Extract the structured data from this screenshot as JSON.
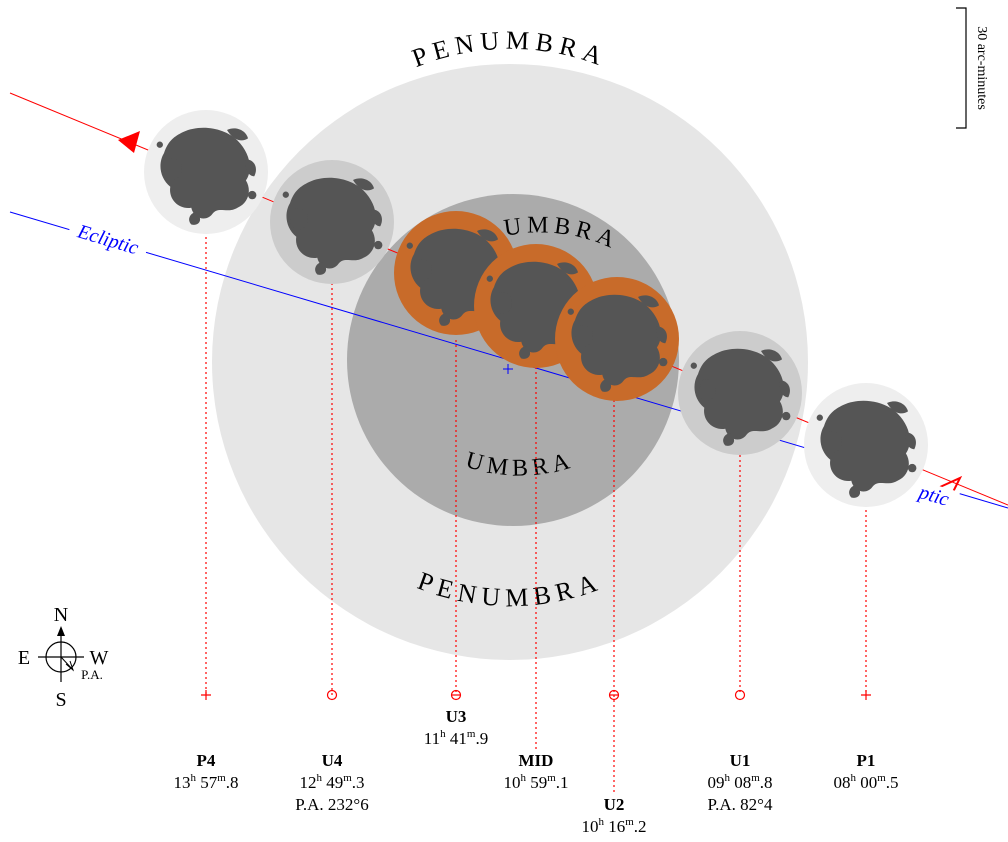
{
  "colors": {
    "penumbra": "#e6e6e6",
    "umbra": "#ababab",
    "totality_moon": "#c86b2a",
    "moon_light": "#eeeeee",
    "moon_shadowed": "#cccccc",
    "mare": "#555555",
    "moon_path": "#ff0000",
    "ecliptic": "#0000ff",
    "contact_line": "#ff0000"
  },
  "labels": {
    "penumbra_top": "PENUMBRA",
    "penumbra_bottom": "PENUMBRA",
    "umbra_top": "UMBRA",
    "umbra_bottom": "UMBRA",
    "ecliptic_left": "Ecliptic",
    "ecliptic_right": "ptic",
    "scale": "30 arc-minutes"
  },
  "compass": {
    "north": "N",
    "south": "S",
    "east": "E",
    "west": "W",
    "position_angle": "P.A."
  },
  "contacts": [
    {
      "id": "P4",
      "label": "P4",
      "hours": "13",
      "minutes": "57",
      "fraction": "8",
      "pa": ""
    },
    {
      "id": "U4",
      "label": "U4",
      "hours": "12",
      "minutes": "49",
      "fraction": "3",
      "pa": "P.A. 232°6"
    },
    {
      "id": "U3",
      "label": "U3",
      "hours": "11",
      "minutes": "41",
      "fraction": "9",
      "pa": ""
    },
    {
      "id": "MID",
      "label": "MID",
      "hours": "10",
      "minutes": "59",
      "fraction": "1",
      "pa": ""
    },
    {
      "id": "U2",
      "label": "U2",
      "hours": "10",
      "minutes": "16",
      "fraction": "2",
      "pa": ""
    },
    {
      "id": "U1",
      "label": "U1",
      "hours": "09",
      "minutes": "08",
      "fraction": "8",
      "pa": "P.A. 82°4"
    },
    {
      "id": "P1",
      "label": "P1",
      "hours": "08",
      "minutes": "00",
      "fraction": "5",
      "pa": ""
    }
  ],
  "time_units": {
    "hour": "h",
    "minute": "m"
  }
}
